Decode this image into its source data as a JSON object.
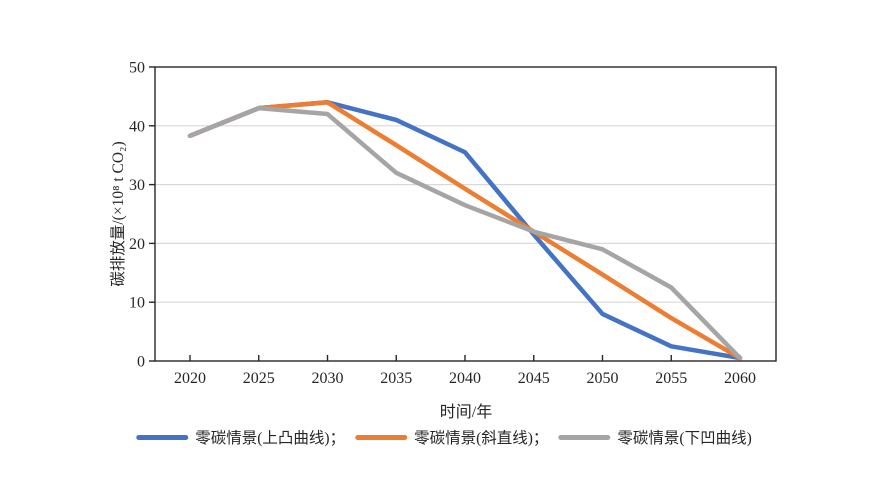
{
  "chart_data": {
    "type": "line",
    "title": "",
    "xlabel": "时间/年",
    "ylabel": "碳排放量/(×10⁸ t CO₂)",
    "x": [
      2020,
      2025,
      2030,
      2035,
      2040,
      2045,
      2050,
      2055,
      2060
    ],
    "xlim": [
      2020,
      2060
    ],
    "ylim": [
      0,
      50
    ],
    "yticks": [
      0,
      10,
      20,
      30,
      40,
      50
    ],
    "grid": "horizontal gridlines only",
    "legend_position": "bottom",
    "axis_color": "#262626",
    "gridline_color": "#d9d9d9",
    "series": [
      {
        "name": "零碳情景(上凸曲线)",
        "legend_label": "零碳情景(上凸曲线)；",
        "color": "#4472C4",
        "values": [
          38.3,
          43,
          44,
          41,
          35.5,
          21.5,
          8,
          2.5,
          0.5
        ]
      },
      {
        "name": "零碳情景(斜直线)",
        "legend_label": "零碳情景(斜直线)；",
        "color": "#ED7D31",
        "values": [
          38.3,
          43,
          44,
          36.7,
          29.3,
          22,
          14.7,
          7.3,
          0.5
        ]
      },
      {
        "name": "零碳情景(下凹曲线)",
        "legend_label": "零碳情景(下凹曲线)",
        "color": "#A5A5A5",
        "values": [
          38.3,
          43,
          42,
          32,
          26.5,
          22,
          19,
          12.5,
          0.5
        ]
      }
    ]
  }
}
